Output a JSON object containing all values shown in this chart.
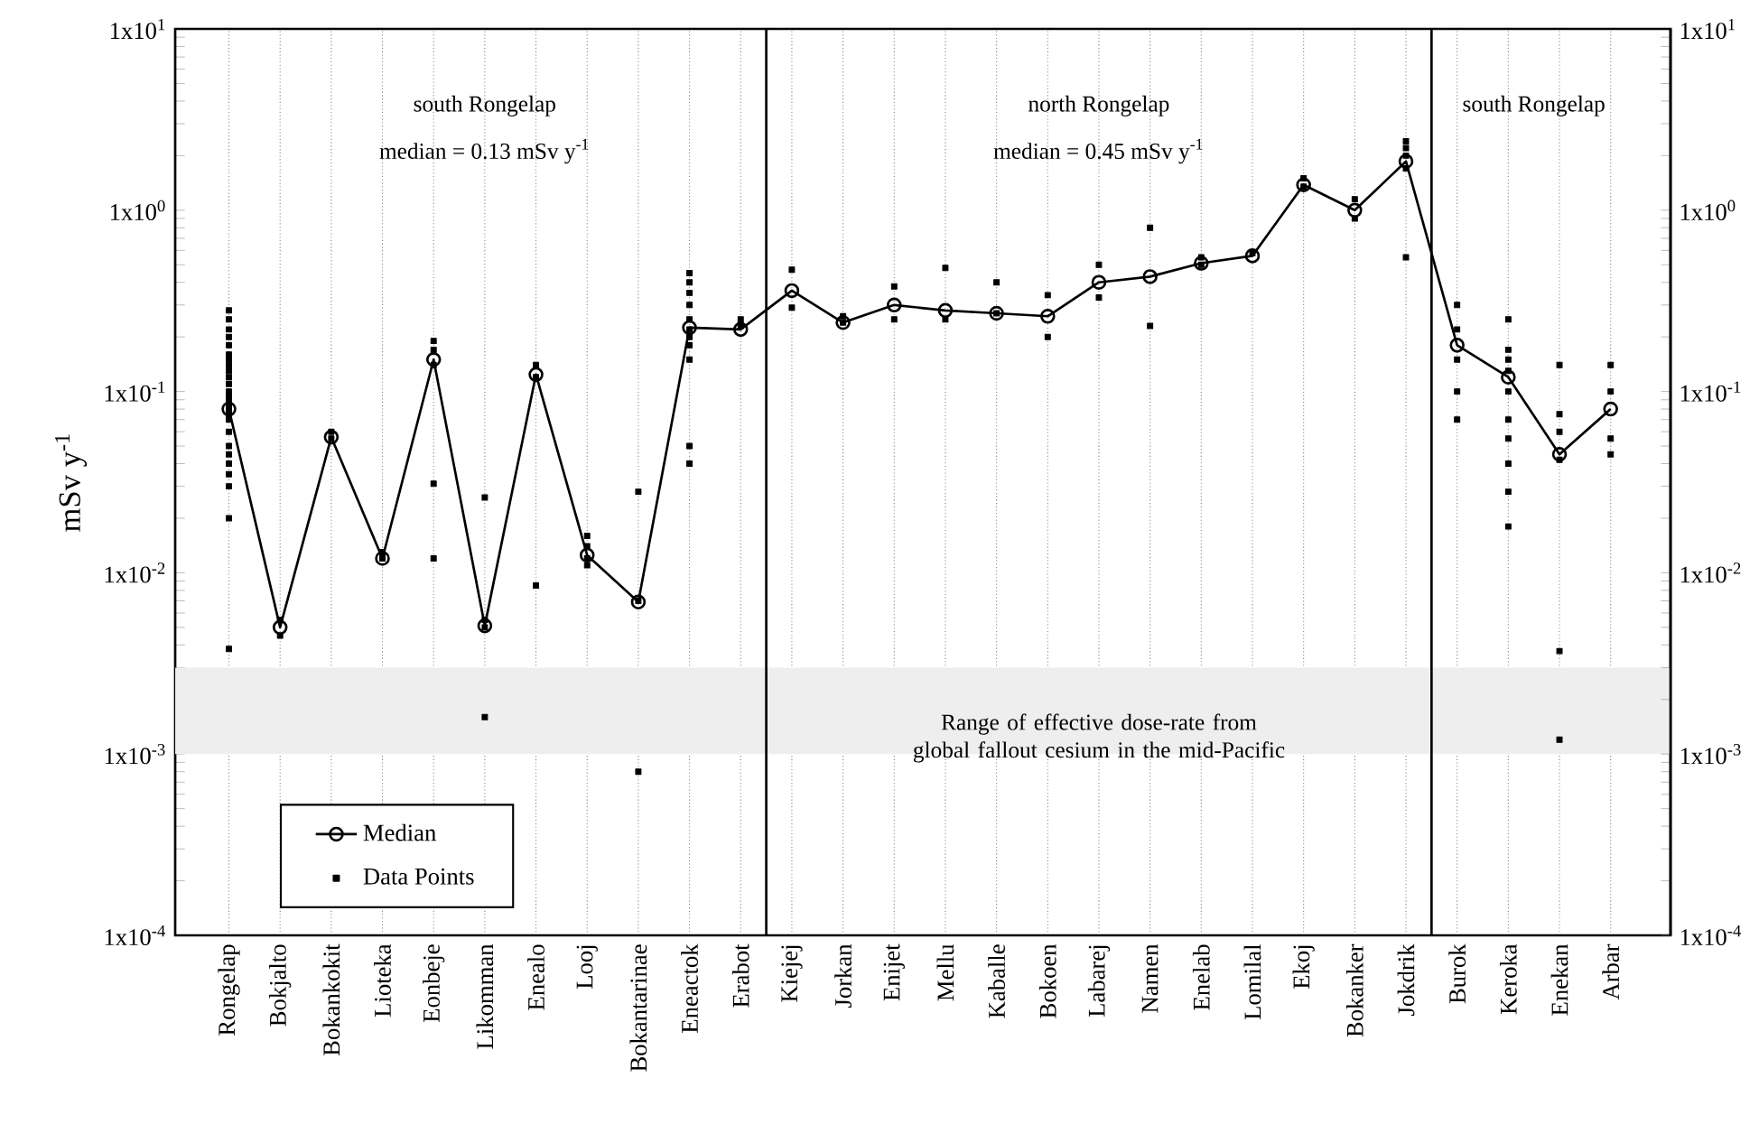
{
  "chart_data": {
    "type": "line",
    "ylabel": "mSv y$^{-1}$",
    "categories": [
      "Rongelap",
      "Bokjalto",
      "Bokankokit",
      "Lioteka",
      "Eonbeje",
      "Likomman",
      "Enealo",
      "Looj",
      "Bokantarinae",
      "Eneactok",
      "Erabot",
      "Kiejej",
      "Jorkan",
      "Enijet",
      "Mellu",
      "Kaballe",
      "Bokoen",
      "Labarej",
      "Namen",
      "Enelab",
      "Lomilal",
      "Ekoj",
      "Bokanker",
      "Jokdrik",
      "Burok",
      "Keroka",
      "Enekan",
      "Arbar"
    ],
    "series": [
      {
        "name": "Median",
        "marker": "circle",
        "color": "#000000",
        "values": [
          0.08,
          0.005,
          0.056,
          0.012,
          0.15,
          0.0051,
          0.124,
          0.0125,
          0.0069,
          0.225,
          0.22,
          0.36,
          0.24,
          0.3,
          0.28,
          0.27,
          0.26,
          0.4,
          0.43,
          0.51,
          0.56,
          1.38,
          1.0,
          1.86,
          0.18,
          0.12,
          0.045,
          0.08
        ]
      },
      {
        "name": "Data Points",
        "type": "scatter",
        "marker": "square",
        "color": "#000000",
        "x": [
          "Rongelap",
          "Rongelap",
          "Rongelap",
          "Rongelap",
          "Rongelap",
          "Rongelap",
          "Rongelap",
          "Rongelap",
          "Rongelap",
          "Rongelap",
          "Rongelap",
          "Rongelap",
          "Rongelap",
          "Rongelap",
          "Rongelap",
          "Rongelap",
          "Rongelap",
          "Rongelap",
          "Rongelap",
          "Rongelap",
          "Rongelap",
          "Rongelap",
          "Rongelap",
          "Rongelap",
          "Rongelap",
          "Rongelap",
          "Bokjalto",
          "Bokjalto",
          "Bokankokit",
          "Bokankokit",
          "Lioteka",
          "Lioteka",
          "Eonbeje",
          "Eonbeje",
          "Eonbeje",
          "Eonbeje",
          "Eonbeje",
          "Likomman",
          "Likomman",
          "Likomman",
          "Likomman",
          "Enealo",
          "Enealo",
          "Enealo",
          "Looj",
          "Looj",
          "Looj",
          "Looj",
          "Bokantarinae",
          "Bokantarinae",
          "Bokantarinae",
          "Eneactok",
          "Eneactok",
          "Eneactok",
          "Eneactok",
          "Eneactok",
          "Eneactok",
          "Eneactok",
          "Eneactok",
          "Eneactok",
          "Eneactok",
          "Eneactok",
          "Erabot",
          "Erabot",
          "Kiejej",
          "Kiejej",
          "Jorkan",
          "Jorkan",
          "Enijet",
          "Enijet",
          "Mellu",
          "Mellu",
          "Kaballe",
          "Kaballe",
          "Bokoen",
          "Bokoen",
          "Labarej",
          "Labarej",
          "Namen",
          "Namen",
          "Enelab",
          "Enelab",
          "Lomilal",
          "Ekoj",
          "Ekoj",
          "Bokanker",
          "Bokanker",
          "Jokdrik",
          "Jokdrik",
          "Jokdrik",
          "Jokdrik",
          "Jokdrik",
          "Burok",
          "Burok",
          "Burok",
          "Burok",
          "Burok",
          "Keroka",
          "Keroka",
          "Keroka",
          "Keroka",
          "Keroka",
          "Keroka",
          "Keroka",
          "Keroka",
          "Keroka",
          "Keroka",
          "Enekan",
          "Enekan",
          "Enekan",
          "Enekan",
          "Enekan",
          "Enekan",
          "Arbar",
          "Arbar",
          "Arbar",
          "Arbar"
        ],
        "values": [
          0.28,
          0.25,
          0.22,
          0.2,
          0.18,
          0.16,
          0.15,
          0.14,
          0.13,
          0.12,
          0.11,
          0.1,
          0.095,
          0.09,
          0.085,
          0.08,
          0.075,
          0.07,
          0.06,
          0.05,
          0.045,
          0.04,
          0.035,
          0.03,
          0.02,
          0.0038,
          0.0055,
          0.0045,
          0.06,
          0.055,
          0.013,
          0.012,
          0.19,
          0.17,
          0.14,
          0.031,
          0.012,
          0.026,
          0.0055,
          0.005,
          0.0016,
          0.14,
          0.12,
          0.0085,
          0.016,
          0.014,
          0.012,
          0.011,
          0.028,
          0.007,
          0.0008,
          0.45,
          0.4,
          0.35,
          0.3,
          0.25,
          0.22,
          0.2,
          0.18,
          0.15,
          0.05,
          0.04,
          0.25,
          0.23,
          0.47,
          0.29,
          0.26,
          0.24,
          0.38,
          0.25,
          0.48,
          0.25,
          0.4,
          0.27,
          0.34,
          0.2,
          0.5,
          0.33,
          0.8,
          0.23,
          0.55,
          0.5,
          0.58,
          1.5,
          1.35,
          1.15,
          0.9,
          2.4,
          2.2,
          2.0,
          1.7,
          0.55,
          0.3,
          0.22,
          0.15,
          0.1,
          0.07,
          0.25,
          0.17,
          0.15,
          0.13,
          0.1,
          0.07,
          0.055,
          0.04,
          0.028,
          0.018,
          0.14,
          0.075,
          0.06,
          0.042,
          0.0037,
          0.0012,
          0.14,
          0.1,
          0.055,
          0.045
        ]
      }
    ],
    "log": true,
    "ylim": [
      0.0001,
      10
    ],
    "yticks": [
      {
        "value": 0.0001,
        "label": "1x10$^{-4}$"
      },
      {
        "value": 0.001,
        "label": "1x10$^{-3}$"
      },
      {
        "value": 0.01,
        "label": "1x10$^{-2}$"
      },
      {
        "value": 0.1,
        "label": "1x10$^{-1}$"
      },
      {
        "value": 1,
        "label": "1x10$^{0}$"
      },
      {
        "value": 10,
        "label": "1x10$^{1}$"
      }
    ],
    "grid": "x",
    "legend": "bottom left",
    "bands": [
      {
        "axis": "y",
        "from": 0.001,
        "to": 0.003,
        "label": "Range of effective dose-rate from global fallout cesium in the mid-Pacific",
        "color": "#eeeeee"
      }
    ],
    "annotations": [
      "south Rongelap",
      "median = 0.13 mSv y$^{-1}$",
      "north Rongelap",
      "median = 0.45 mSv y$^{-1}$",
      "south Rongelap"
    ]
  }
}
